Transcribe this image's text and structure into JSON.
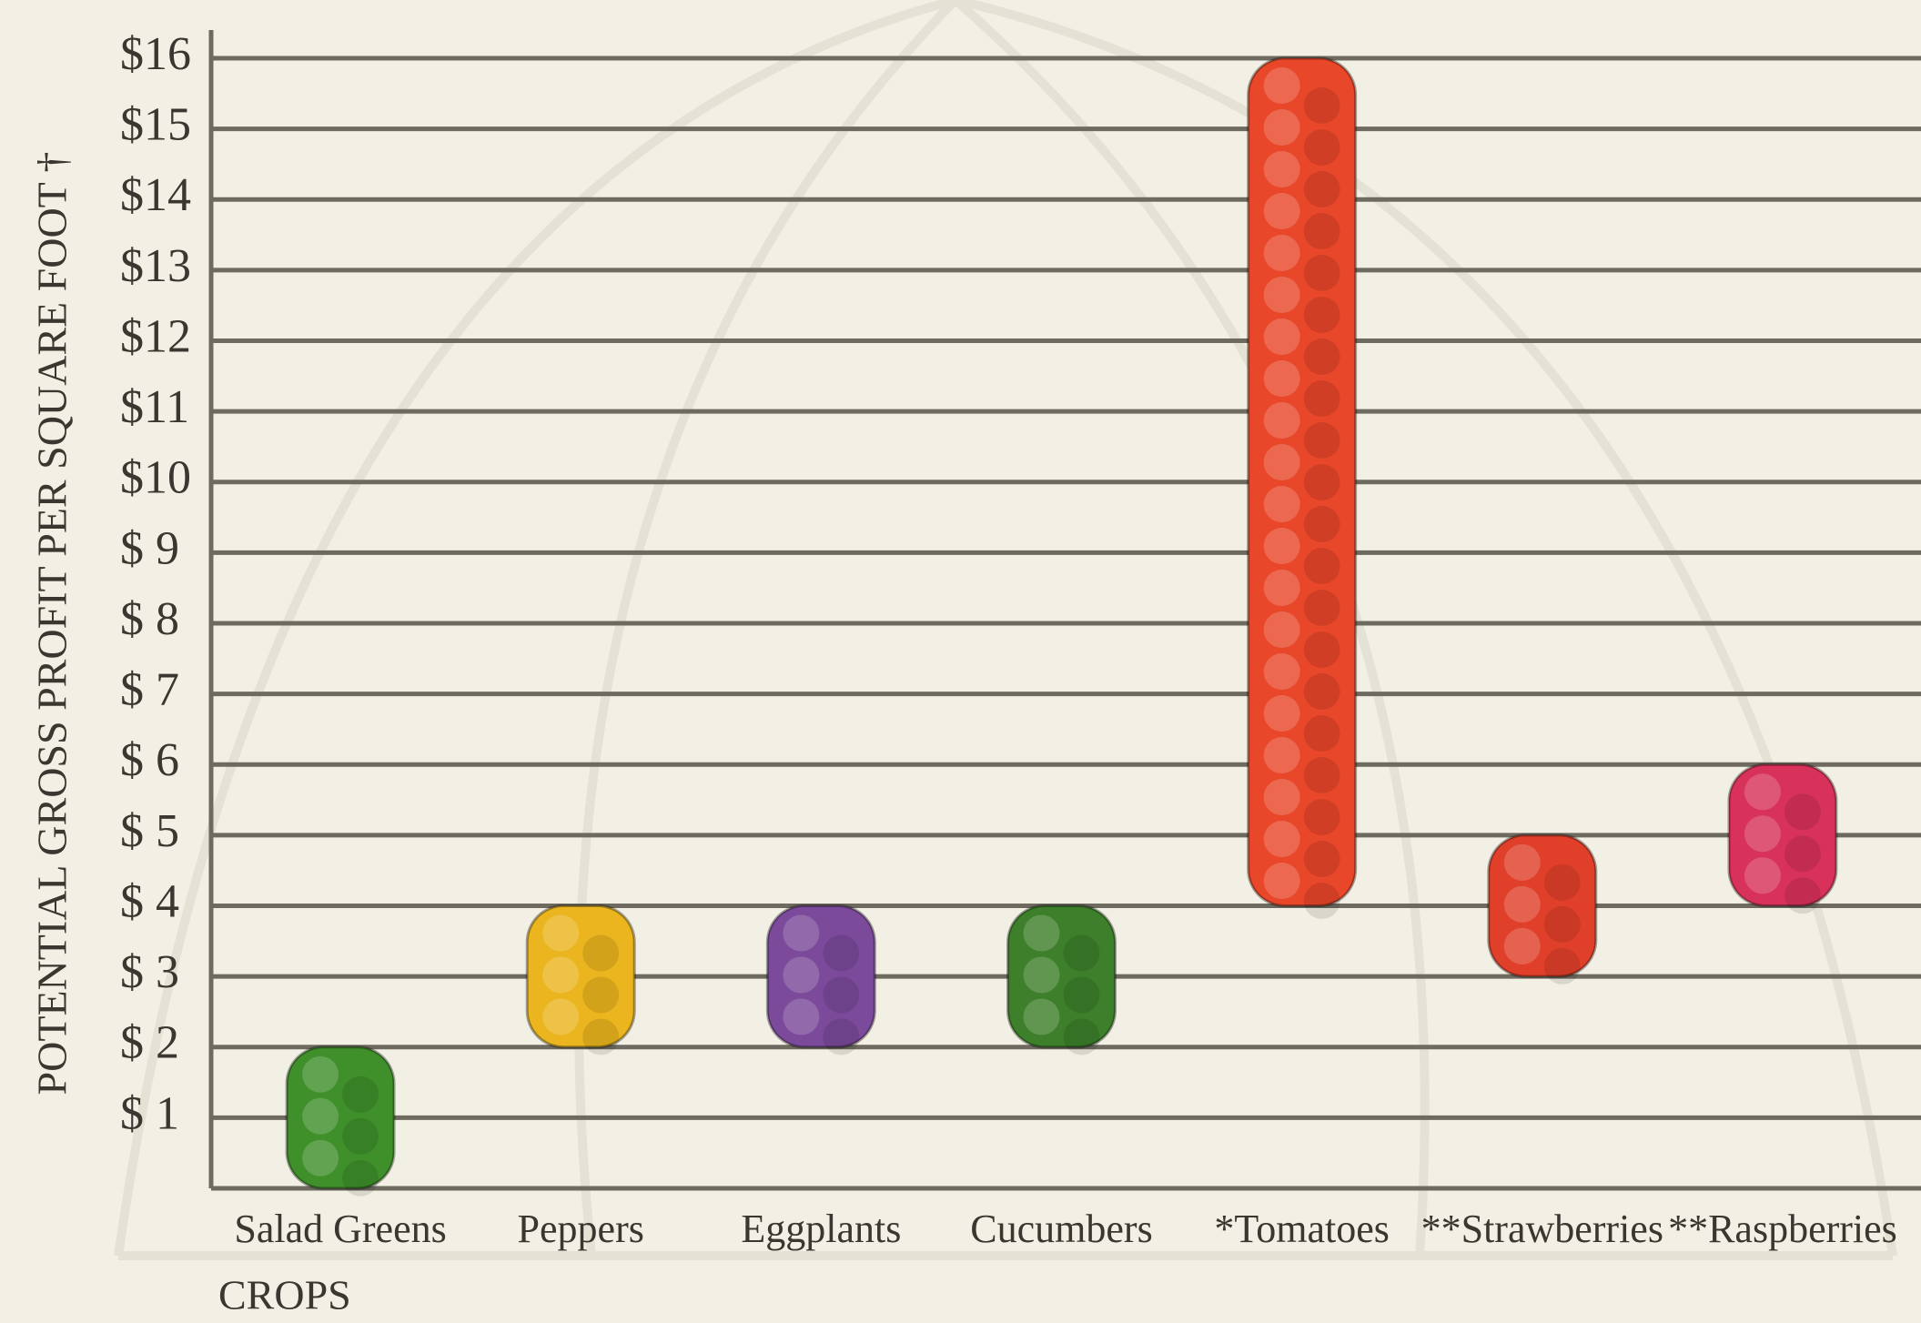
{
  "chart_data": {
    "type": "range-bar",
    "y_label": "POTENTIAL GROSS PROFIT PER SQUARE FOOT †",
    "x_label": "CROPS",
    "categories": [
      "Salad Greens",
      "Peppers",
      "Eggplants",
      "Cucumbers",
      "*Tomatoes",
      "**Strawberries",
      "**Raspberries"
    ],
    "low": [
      0,
      2,
      2,
      2,
      4,
      3,
      4
    ],
    "high": [
      2,
      4,
      4,
      4,
      16,
      5,
      6
    ],
    "colors": [
      "#3f8f2a",
      "#eab51e",
      "#7b4a9a",
      "#3d7f2a",
      "#e8472a",
      "#e0402a",
      "#d8325a"
    ],
    "ylim": [
      0,
      16.4
    ],
    "yticks": [
      {
        "value": 1,
        "label": "$ 1"
      },
      {
        "value": 2,
        "label": "$ 2"
      },
      {
        "value": 3,
        "label": "$ 3"
      },
      {
        "value": 4,
        "label": "$ 4"
      },
      {
        "value": 5,
        "label": "$ 5"
      },
      {
        "value": 6,
        "label": "$ 6"
      },
      {
        "value": 7,
        "label": "$ 7"
      },
      {
        "value": 8,
        "label": "$ 8"
      },
      {
        "value": 9,
        "label": "$ 9"
      },
      {
        "value": 10,
        "label": "$10"
      },
      {
        "value": 11,
        "label": "$11"
      },
      {
        "value": 12,
        "label": "$12"
      },
      {
        "value": 13,
        "label": "$13"
      },
      {
        "value": 14,
        "label": "$14"
      },
      {
        "value": 15,
        "label": "$15"
      },
      {
        "value": 16,
        "label": "$16"
      }
    ],
    "grid": true
  }
}
